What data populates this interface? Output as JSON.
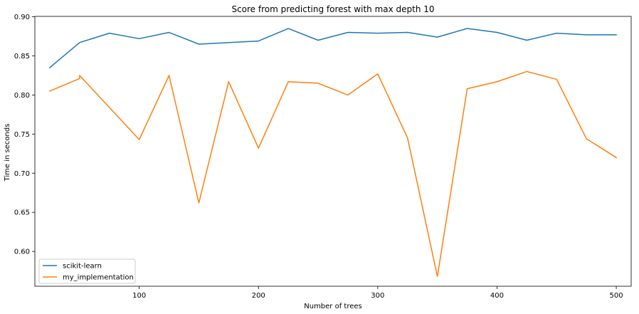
{
  "chart_data": {
    "type": "line",
    "title": "Score from predicting forest with max depth 10",
    "xlabel": "Number of trees",
    "ylabel": "Time in seconds",
    "xlim": [
      12.5,
      512.5
    ],
    "ylim": [
      0.5555,
      0.9005
    ],
    "xticks": [
      100,
      200,
      300,
      400,
      500
    ],
    "xtick_labels": [
      "100",
      "200",
      "300",
      "400",
      "500"
    ],
    "yticks": [
      0.6,
      0.65,
      0.7,
      0.75,
      0.8,
      0.85,
      0.9
    ],
    "ytick_labels": [
      "0.60",
      "0.65",
      "0.70",
      "0.75",
      "0.80",
      "0.85",
      "0.90"
    ],
    "legend_position": "lower-left",
    "grid": false,
    "series": [
      {
        "name": "scikit-learn",
        "color": "#1f77b4",
        "x": [
          25,
          50,
          75,
          100,
          125,
          150,
          200,
          225,
          250,
          275,
          300,
          325,
          350,
          375,
          400,
          425,
          450,
          475,
          500
        ],
        "y": [
          0.835,
          0.867,
          0.879,
          0.872,
          0.88,
          0.865,
          0.869,
          0.885,
          0.87,
          0.88,
          0.879,
          0.88,
          0.874,
          0.885,
          0.88,
          0.87,
          0.879,
          0.877,
          0.877
        ]
      },
      {
        "name": "my_implementation",
        "color": "#ff7f0e",
        "x": [
          25,
          50,
          50,
          100,
          125,
          150,
          175,
          200,
          225,
          250,
          275,
          300,
          325,
          350,
          375,
          400,
          425,
          450,
          475,
          500
        ],
        "y": [
          0.805,
          0.821,
          0.825,
          0.743,
          0.825,
          0.662,
          0.817,
          0.732,
          0.817,
          0.815,
          0.8,
          0.827,
          0.745,
          0.568,
          0.808,
          0.817,
          0.83,
          0.82,
          0.744,
          0.72
        ]
      }
    ]
  }
}
